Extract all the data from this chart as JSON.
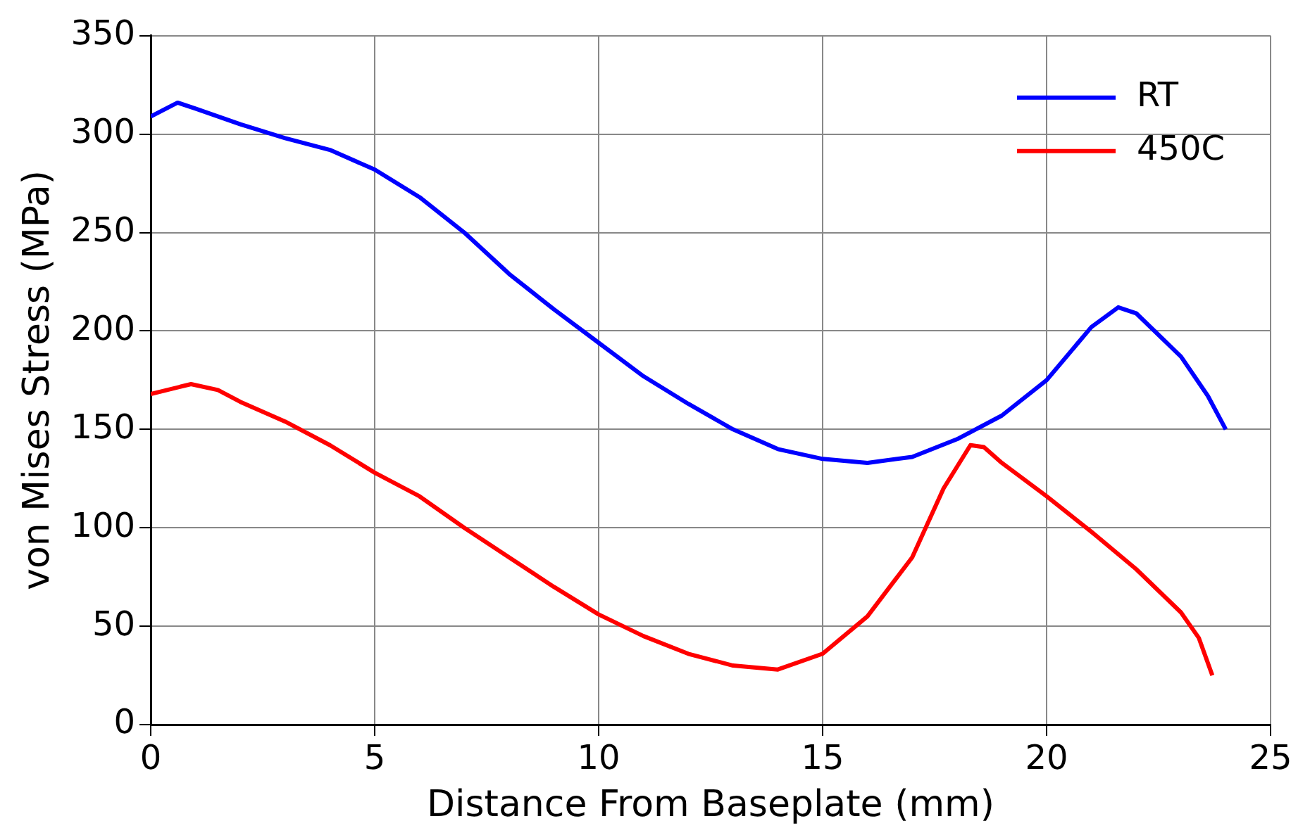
{
  "chart_data": {
    "type": "line",
    "xlabel": "Distance From Baseplate (mm)",
    "ylabel": "von Mises Stress (MPa)",
    "xlim": [
      0,
      25
    ],
    "xticks": [
      0,
      5,
      10,
      15,
      20,
      25
    ],
    "ylim": [
      0,
      350
    ],
    "yticks": [
      0,
      50,
      100,
      150,
      200,
      250,
      300,
      350
    ],
    "grid": true,
    "legend": "top right",
    "marker": "none",
    "line_style": "solid",
    "series": [
      {
        "name": "RT",
        "color": "#0000ff",
        "x": [
          0,
          0.6,
          1,
          2,
          3,
          4,
          5,
          6,
          7,
          8,
          9,
          10,
          11,
          12,
          13,
          14,
          15,
          16,
          17,
          18,
          19,
          20,
          21,
          21.6,
          22,
          23,
          23.6,
          24
        ],
        "values": [
          309,
          316,
          313,
          305,
          298,
          292,
          282,
          268,
          250,
          229,
          211,
          194,
          177,
          163,
          150,
          140,
          135,
          133,
          136,
          145,
          157,
          175,
          202,
          212,
          209,
          187,
          167,
          150
        ]
      },
      {
        "name": "450C",
        "color": "#ff0000",
        "x": [
          0,
          0.9,
          1.5,
          2,
          3,
          4,
          5,
          6,
          7,
          8,
          9,
          10,
          11,
          12,
          13,
          14,
          15,
          16,
          17,
          17.7,
          18.3,
          18.6,
          19,
          20,
          21,
          22,
          23,
          23.4,
          23.7
        ],
        "values": [
          168,
          173,
          170,
          164,
          154,
          142,
          128,
          116,
          100,
          85,
          70,
          56,
          45,
          36,
          30,
          28,
          36,
          55,
          85,
          120,
          142,
          141,
          133,
          116,
          98,
          79,
          57,
          44,
          25
        ]
      }
    ]
  }
}
